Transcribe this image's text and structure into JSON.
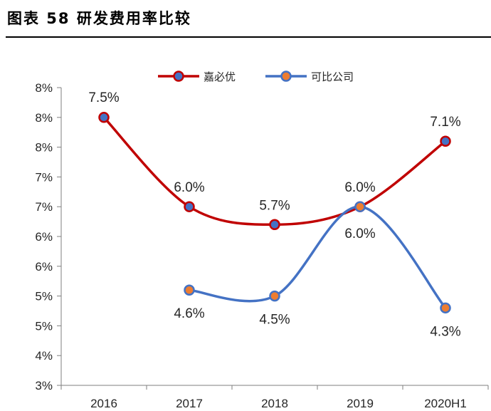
{
  "figure": {
    "title": "图表 58 研发费用率比较"
  },
  "chart_data": {
    "type": "line",
    "title": "",
    "xlabel": "",
    "ylabel": "",
    "categories": [
      "2016",
      "2017",
      "2018",
      "2019",
      "2020H1"
    ],
    "y_tick_labels": [
      "3%",
      "4%",
      "5%",
      "5%",
      "6%",
      "6%",
      "7%",
      "7%",
      "8%",
      "8%",
      "8%"
    ],
    "ylim": [
      3.0,
      8.0
    ],
    "grid": false,
    "legend": "top-center",
    "series": [
      {
        "name": "嘉必优",
        "color": "#c00000",
        "marker_color": "#4472c4",
        "values": [
          7.5,
          6.0,
          5.7,
          6.0,
          7.1
        ],
        "labels": [
          "7.5%",
          "6.0%",
          "5.7%",
          "6.0%",
          "7.1%"
        ]
      },
      {
        "name": "可比公司",
        "color": "#4472c4",
        "marker_color": "#ed7d31",
        "values": [
          null,
          4.6,
          4.5,
          6.0,
          4.3
        ],
        "labels": [
          "",
          "4.6%",
          "4.5%",
          "6.0%",
          "4.3%"
        ]
      }
    ]
  }
}
